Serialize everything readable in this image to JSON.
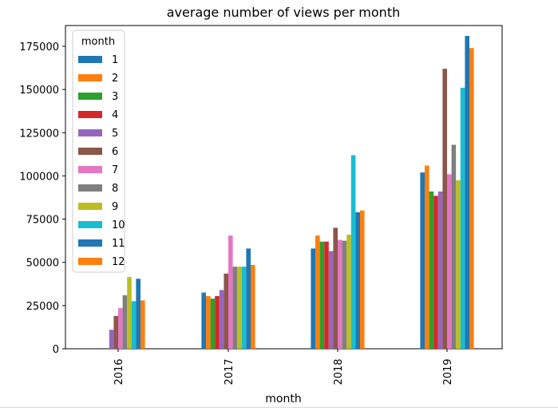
{
  "chart_data": {
    "type": "bar",
    "title": "average number of views per month",
    "xlabel": "month",
    "ylabel": "",
    "categories": [
      "2016",
      "2017",
      "2018",
      "2019"
    ],
    "ylim": [
      0,
      187000
    ],
    "yticks": [
      0,
      25000,
      50000,
      75000,
      100000,
      125000,
      150000,
      175000
    ],
    "legend": {
      "title": "month",
      "placement": "top-left"
    },
    "grid": false,
    "series": [
      {
        "name": "1",
        "color": "#1f77b4",
        "values": [
          null,
          32500,
          58000,
          102000
        ]
      },
      {
        "name": "2",
        "color": "#ff7f0e",
        "values": [
          null,
          30500,
          65500,
          106000
        ]
      },
      {
        "name": "3",
        "color": "#2ca02c",
        "values": [
          null,
          29000,
          62000,
          91000
        ]
      },
      {
        "name": "4",
        "color": "#d62728",
        "values": [
          null,
          30500,
          62000,
          88500
        ]
      },
      {
        "name": "5",
        "color": "#9467bd",
        "values": [
          11000,
          34000,
          56500,
          91000
        ]
      },
      {
        "name": "6",
        "color": "#8c564b",
        "values": [
          19000,
          43500,
          70000,
          162000
        ]
      },
      {
        "name": "7",
        "color": "#e377c2",
        "values": [
          23500,
          65500,
          63000,
          101000
        ]
      },
      {
        "name": "8",
        "color": "#7f7f7f",
        "values": [
          31000,
          47500,
          62500,
          118000
        ]
      },
      {
        "name": "9",
        "color": "#bcbd22",
        "values": [
          41500,
          47500,
          66000,
          97500
        ]
      },
      {
        "name": "10",
        "color": "#17becf",
        "values": [
          27500,
          47500,
          112000,
          151000
        ]
      },
      {
        "name": "11",
        "color": "#1f77b4",
        "values": [
          40500,
          58000,
          79000,
          181000
        ]
      },
      {
        "name": "12",
        "color": "#ff7f0e",
        "values": [
          28000,
          48500,
          80000,
          174000
        ]
      }
    ]
  }
}
